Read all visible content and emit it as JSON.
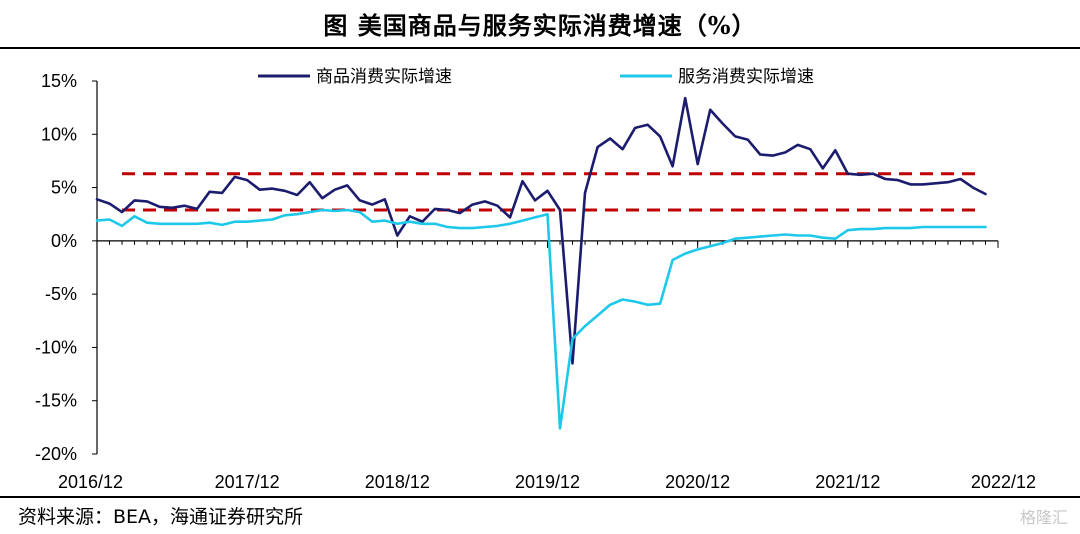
{
  "header": {
    "title": "图  美国商品与服务实际消费增速（%）"
  },
  "footer": {
    "source": "资料来源：BEA，海通证券研究所",
    "watermark": "格隆汇"
  },
  "colors": {
    "goods": "#1c1c6e",
    "services": "#1ec8ea",
    "reference": "#c00000"
  },
  "chart_data": {
    "type": "line",
    "title": "美国商品与服务实际消费增速（%）",
    "xlabel": "",
    "ylabel": "",
    "ylim": [
      -20,
      15
    ],
    "yticks": [
      "15%",
      "10%",
      "5%",
      "0%",
      "-5%",
      "-10%",
      "-15%",
      "-20%"
    ],
    "ytick_values": [
      15,
      10,
      5,
      0,
      -5,
      -10,
      -15,
      -20
    ],
    "xlim": [
      0,
      72
    ],
    "xticks": [
      "2016/12",
      "2017/12",
      "2018/12",
      "2019/12",
      "2020/12",
      "2021/12",
      "2022/12"
    ],
    "xtick_values": [
      0,
      12,
      24,
      36,
      48,
      60,
      72
    ],
    "grid": false,
    "legend": "top",
    "reference_lines": [
      6.3,
      2.9
    ],
    "series": [
      {
        "name": "商品消费实际增速",
        "x": [
          0,
          1,
          2,
          3,
          4,
          5,
          6,
          7,
          8,
          9,
          10,
          11,
          12,
          13,
          14,
          15,
          16,
          17,
          18,
          19,
          20,
          21,
          22,
          23,
          24,
          25,
          26,
          27,
          28,
          29,
          30,
          31,
          32,
          33,
          34,
          35,
          36,
          37,
          38,
          39,
          40,
          41,
          42,
          43,
          44,
          45,
          46,
          47,
          48,
          49,
          50,
          51,
          52,
          53,
          54,
          55,
          56,
          57,
          58,
          59,
          60,
          61,
          62,
          63,
          64,
          65,
          66,
          67,
          68,
          69,
          70,
          71
        ],
        "y": [
          3.9,
          3.5,
          2.7,
          3.8,
          3.7,
          3.2,
          3.1,
          3.3,
          3.0,
          4.6,
          4.5,
          6.0,
          5.7,
          4.8,
          4.9,
          4.7,
          4.3,
          5.5,
          4.0,
          4.8,
          5.2,
          3.8,
          3.4,
          3.9,
          0.5,
          2.3,
          1.8,
          3.0,
          2.9,
          2.6,
          3.4,
          3.7,
          3.3,
          2.2,
          5.6,
          3.8,
          4.7,
          2.9,
          -11.5,
          4.5,
          8.8,
          9.6,
          8.6,
          10.6,
          10.9,
          9.8,
          7.0,
          13.4,
          7.2,
          12.3,
          11.0,
          9.8,
          9.5,
          8.1,
          8.0,
          8.3,
          9.0,
          8.6,
          6.8,
          8.5,
          6.3,
          6.2,
          6.3,
          5.8,
          5.7,
          5.3,
          5.3,
          5.4,
          5.5,
          5.8,
          5.0,
          4.4
        ]
      },
      {
        "name": "服务消费实际增速",
        "x": [
          0,
          1,
          2,
          3,
          4,
          5,
          6,
          7,
          8,
          9,
          10,
          11,
          12,
          13,
          14,
          15,
          16,
          17,
          18,
          19,
          20,
          21,
          22,
          23,
          24,
          25,
          26,
          27,
          28,
          29,
          30,
          31,
          32,
          33,
          34,
          35,
          36,
          37,
          38,
          39,
          40,
          41,
          42,
          43,
          44,
          45,
          46,
          47,
          48,
          49,
          50,
          51,
          52,
          53,
          54,
          55,
          56,
          57,
          58,
          59,
          60,
          61,
          62,
          63,
          64,
          65,
          66,
          67,
          68,
          69,
          70,
          71
        ],
        "y": [
          1.9,
          2.0,
          1.4,
          2.3,
          1.7,
          1.6,
          1.6,
          1.6,
          1.6,
          1.7,
          1.5,
          1.8,
          1.8,
          1.9,
          2.0,
          2.4,
          2.5,
          2.7,
          2.9,
          2.8,
          2.9,
          2.7,
          1.8,
          1.9,
          1.6,
          1.8,
          1.6,
          1.6,
          1.3,
          1.2,
          1.2,
          1.3,
          1.4,
          1.6,
          1.9,
          2.2,
          2.5,
          -17.6,
          -9.2,
          -8.0,
          -7.0,
          -6.0,
          -5.5,
          -5.7,
          -6.0,
          -5.9,
          -1.8,
          -1.2,
          -0.8,
          -0.5,
          -0.2,
          0.2,
          0.3,
          0.4,
          0.5,
          0.6,
          0.5,
          0.5,
          0.3,
          0.2,
          1.0,
          1.1,
          1.1,
          1.2,
          1.2,
          1.2,
          1.3,
          1.3,
          1.3,
          1.3,
          1.3,
          1.3
        ]
      }
    ]
  }
}
